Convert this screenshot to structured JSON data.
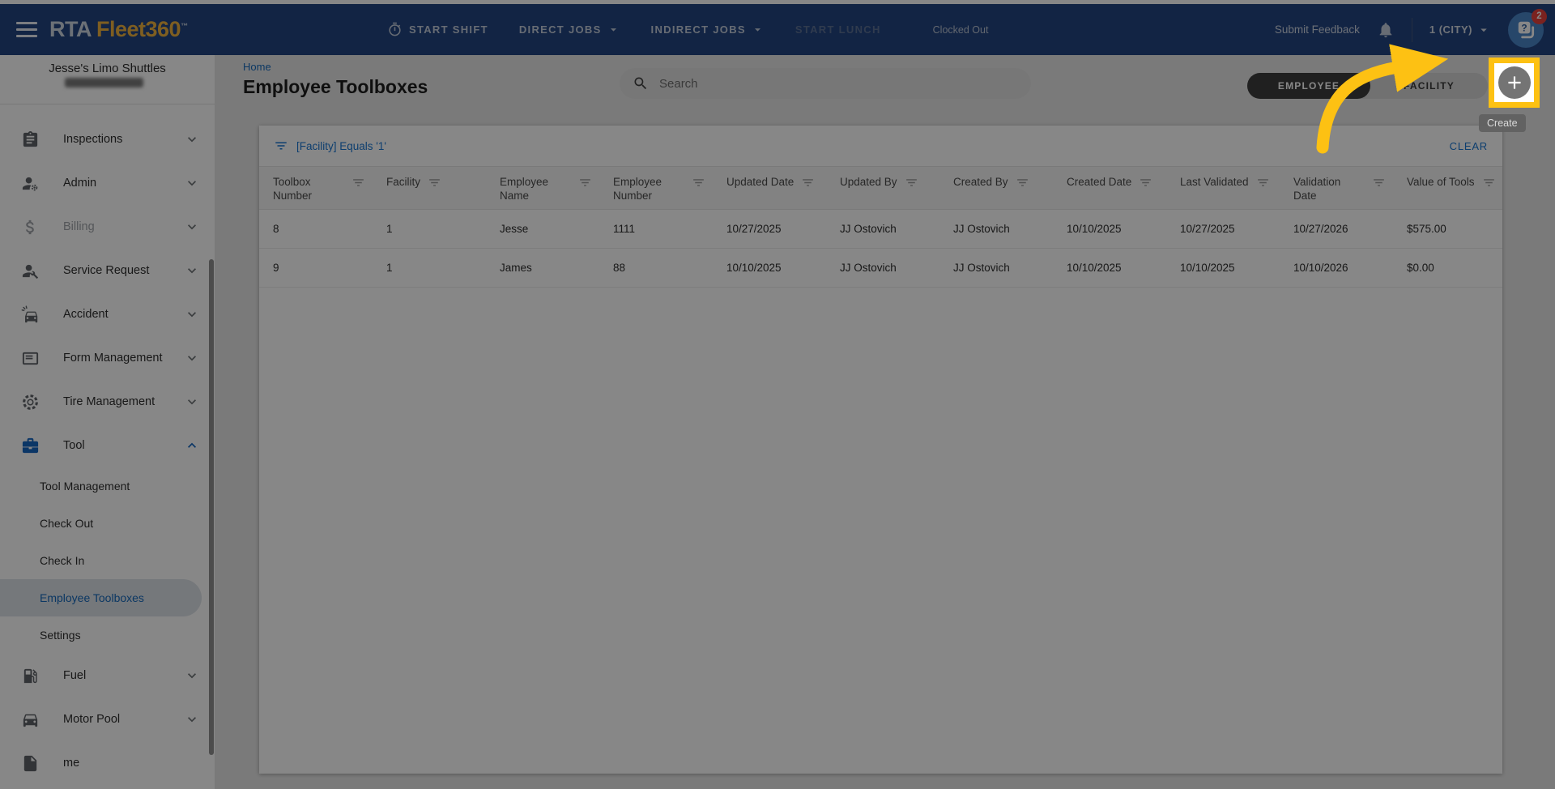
{
  "navbar": {
    "menu_icon": "menu",
    "logo": {
      "rta": "RTA",
      "fleet": "Fleet360",
      "tm": "™"
    },
    "shift_actions": [
      {
        "label": "START SHIFT",
        "icon": "timer"
      },
      {
        "label": "DIRECT JOBS",
        "caret": true
      },
      {
        "label": "INDIRECT JOBS",
        "caret": true
      },
      {
        "label": "START LUNCH",
        "disabled": true
      }
    ],
    "clock_status": "Clocked Out",
    "submit_feedback": "Submit Feedback",
    "bell_icon": "bell",
    "facility_selector": "1 (CITY)",
    "avatar_icon": "chat-help",
    "notification_badge": "2"
  },
  "sidebar": {
    "org_name": "Jesse's Limo Shuttles",
    "items": [
      {
        "label": "Inspections",
        "icon": "clipboard",
        "expandable": true
      },
      {
        "label": "Admin",
        "icon": "person-gear",
        "expandable": true
      },
      {
        "label": "Billing",
        "icon": "dollar",
        "expandable": true,
        "disabled": true
      },
      {
        "label": "Service Request",
        "icon": "person-wrench",
        "expandable": true
      },
      {
        "label": "Accident",
        "icon": "car-crash",
        "expandable": true
      },
      {
        "label": "Form Management",
        "icon": "form-list",
        "expandable": true
      },
      {
        "label": "Tire Management",
        "icon": "tire",
        "expandable": true
      },
      {
        "label": "Tool",
        "icon": "toolbox",
        "expandable": true,
        "expanded": true,
        "active": true,
        "children": [
          "Tool Management",
          "Check Out",
          "Check In",
          "Employee Toolboxes",
          "Settings"
        ],
        "selected_child": "Employee Toolboxes"
      },
      {
        "label": "Fuel",
        "icon": "fuel-pump",
        "expandable": true
      },
      {
        "label": "Motor Pool",
        "icon": "car",
        "expandable": true
      },
      {
        "label": "me",
        "icon": "file"
      }
    ]
  },
  "page_header": {
    "breadcrumb": "Home",
    "title": "Employee Toolboxes",
    "search_placeholder": "Search",
    "search_icon": "search",
    "view_toggle": {
      "options": [
        "EMPLOYEE",
        "FACILITY"
      ],
      "selected": "EMPLOYEE"
    },
    "create_button_icon": "plus",
    "create_tooltip": "Create"
  },
  "filter_bar": {
    "filter_icon": "filter-list",
    "active_filter": "[Facility] Equals '1'",
    "clear_label": "CLEAR"
  },
  "table": {
    "columns": [
      "Toolbox Number",
      "Facility",
      "Employee Name",
      "Employee Number",
      "Updated Date",
      "Updated By",
      "Created By",
      "Created Date",
      "Last Validated",
      "Validation Date",
      "Value of Tools"
    ],
    "rows": [
      [
        "8",
        "1",
        "Jesse",
        "1111",
        "10/27/2025",
        "JJ Ostovich",
        "JJ Ostovich",
        "10/10/2025",
        "10/27/2025",
        "10/27/2026",
        "$575.00"
      ],
      [
        "9",
        "1",
        "James",
        "88",
        "10/10/2025",
        "JJ Ostovich",
        "JJ Ostovich",
        "10/10/2025",
        "10/10/2025",
        "10/10/2026",
        "$0.00"
      ]
    ]
  },
  "colors": {
    "highlight_amber": "#FDC113",
    "link_blue": "#1976D2",
    "navbar_navy": "#234480",
    "brand_gold": "#EEB23F",
    "badge_red": "#E8413C",
    "selected_blue": "#1669BB"
  }
}
